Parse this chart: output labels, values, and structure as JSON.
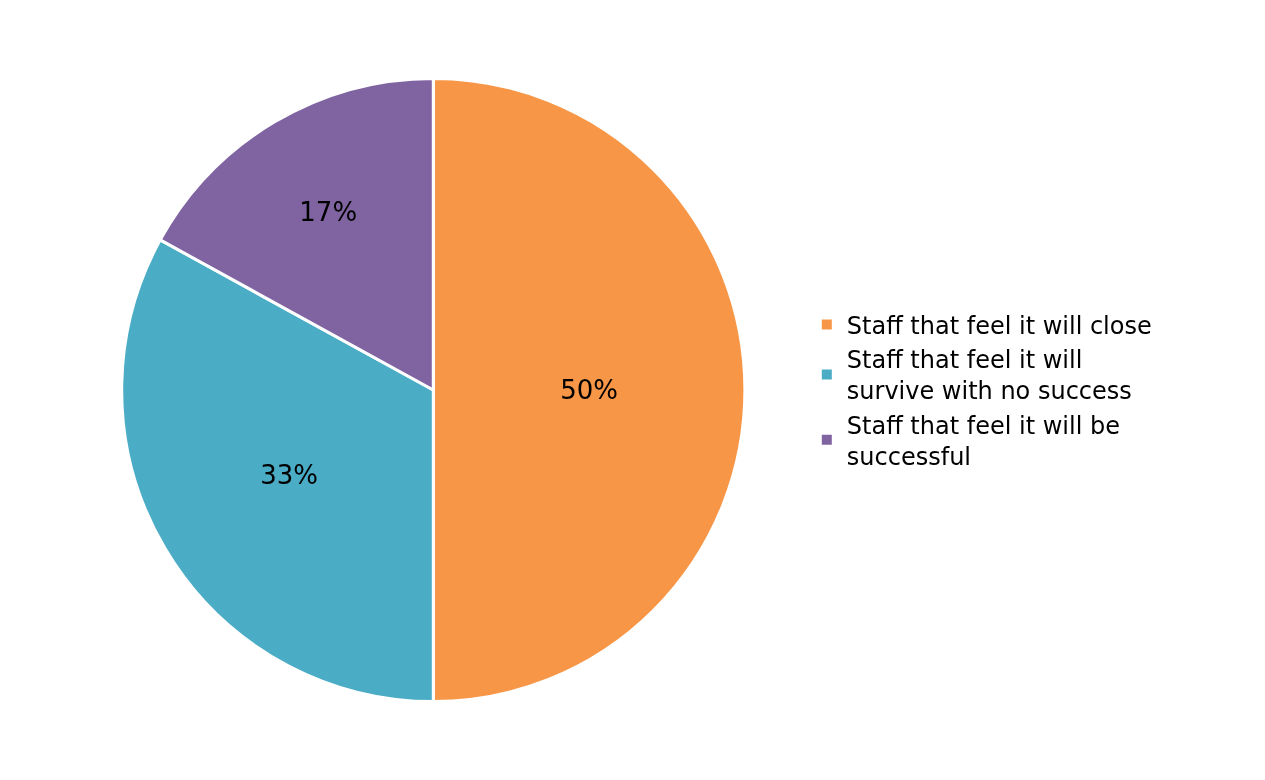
{
  "chart_data": {
    "type": "pie",
    "categories": [
      "Staff that feel it will close",
      "Staff that feel it will survive with no success",
      "Staff that feel it will be successful"
    ],
    "values": [
      50,
      33,
      17
    ],
    "value_labels": [
      "50%",
      "33%",
      "17%"
    ],
    "colors": [
      "#f79646",
      "#4bacc6",
      "#8064a2"
    ],
    "legend": "right"
  }
}
